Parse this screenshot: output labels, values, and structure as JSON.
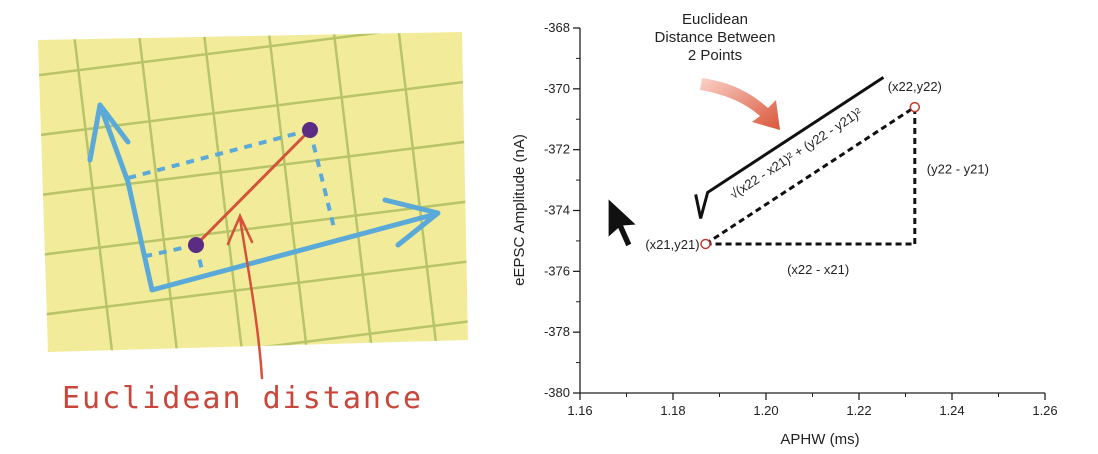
{
  "illustration": {
    "caption": "Euclidean distance",
    "colors": {
      "paper": "#f2ec9a",
      "grid": "#b8c468",
      "axis": "#5aa9d8",
      "line": "#d4523a",
      "point": "#5b2c83",
      "caption": "#c8463a"
    }
  },
  "chart_data": {
    "type": "scatter",
    "title": "Euclidean\nDistance Between\n2 Points",
    "xlabel": "APHW (ms)",
    "ylabel": "eEPSC Amplitude (nA)",
    "xlim": [
      1.16,
      1.26
    ],
    "ylim": [
      -380,
      -368
    ],
    "xticks": [
      "1.16",
      "1.18",
      "1.20",
      "1.22",
      "1.24",
      "1.26"
    ],
    "yticks": [
      "-368",
      "-370",
      "-372",
      "-374",
      "-376",
      "-378",
      "-380"
    ],
    "grid": false,
    "points": [
      {
        "x": 1.187,
        "y": -375.1,
        "label": "(x21,y21)"
      },
      {
        "x": 1.232,
        "y": -370.6,
        "label": "(x22,y22)"
      }
    ],
    "annotations": {
      "dx": "(x22 - x21)",
      "dy": "(y22 - y21)",
      "formula": "√(x22 - x21)² + (y22 - y21)²"
    }
  }
}
